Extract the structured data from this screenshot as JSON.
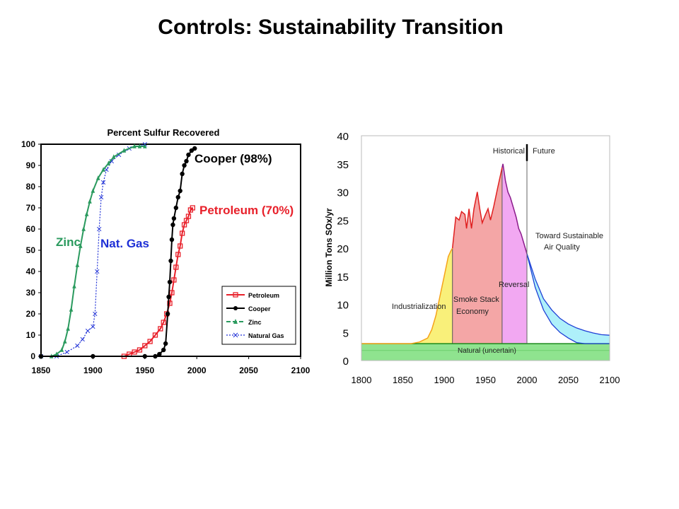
{
  "slide_title": "Controls: Sustainability Transition",
  "chart_data": [
    {
      "type": "line",
      "title": "Percent Sulfur Recovered",
      "xlabel": "",
      "ylabel": "",
      "xlim": [
        1850,
        2100
      ],
      "ylim": [
        0,
        100
      ],
      "x_ticks": [
        "1850",
        "1900",
        "1950",
        "2000",
        "2050",
        "2100"
      ],
      "y_ticks": [
        "0",
        "10",
        "20",
        "30",
        "40",
        "50",
        "60",
        "70",
        "80",
        "90",
        "100"
      ],
      "grid": false,
      "legend_position": "bottom-right",
      "series": [
        {
          "name": "Petroleum",
          "color": "#e8202a",
          "marker": "square",
          "points": [
            [
              1930,
              0
            ],
            [
              1935,
              1
            ],
            [
              1940,
              2
            ],
            [
              1945,
              3
            ],
            [
              1950,
              5
            ],
            [
              1955,
              7
            ],
            [
              1960,
              10
            ],
            [
              1965,
              13
            ],
            [
              1968,
              16
            ],
            [
              1971,
              20
            ],
            [
              1974,
              25
            ],
            [
              1976,
              30
            ],
            [
              1978,
              36
            ],
            [
              1980,
              42
            ],
            [
              1982,
              48
            ],
            [
              1984,
              52
            ],
            [
              1986,
              58
            ],
            [
              1988,
              62
            ],
            [
              1990,
              64
            ],
            [
              1992,
              66
            ],
            [
              1994,
              69
            ],
            [
              1996,
              70
            ]
          ]
        },
        {
          "name": "Cooper",
          "color": "#000000",
          "marker": "circle",
          "points": [
            [
              1850,
              0
            ],
            [
              1900,
              0
            ],
            [
              1950,
              0
            ],
            [
              1960,
              0
            ],
            [
              1964,
              1
            ],
            [
              1968,
              3
            ],
            [
              1970,
              6
            ],
            [
              1972,
              20
            ],
            [
              1973,
              28
            ],
            [
              1974,
              35
            ],
            [
              1975,
              45
            ],
            [
              1976,
              55
            ],
            [
              1977,
              62
            ],
            [
              1978,
              65
            ],
            [
              1980,
              70
            ],
            [
              1982,
              75
            ],
            [
              1984,
              78
            ],
            [
              1986,
              86
            ],
            [
              1988,
              90
            ],
            [
              1990,
              92
            ],
            [
              1992,
              95
            ],
            [
              1995,
              97
            ],
            [
              1998,
              98
            ]
          ]
        },
        {
          "name": "Zinc",
          "color": "#2a9a5e",
          "marker": "triangle",
          "points": [
            [
              1850,
              0
            ],
            [
              1860,
              0
            ],
            [
              1865,
              1
            ],
            [
              1870,
              3
            ],
            [
              1873,
              7
            ],
            [
              1876,
              13
            ],
            [
              1879,
              22
            ],
            [
              1882,
              33
            ],
            [
              1885,
              43
            ],
            [
              1888,
              52
            ],
            [
              1891,
              60
            ],
            [
              1894,
              67
            ],
            [
              1897,
              73
            ],
            [
              1900,
              78
            ],
            [
              1905,
              84
            ],
            [
              1910,
              88
            ],
            [
              1915,
              91
            ],
            [
              1920,
              94
            ],
            [
              1930,
              97
            ],
            [
              1940,
              99
            ],
            [
              1945,
              99
            ],
            [
              1950,
              99
            ]
          ]
        },
        {
          "name": "Natural Gas",
          "color": "#1e2fd6",
          "marker": "x",
          "points": [
            [
              1850,
              0
            ],
            [
              1865,
              0
            ],
            [
              1875,
              2
            ],
            [
              1885,
              5
            ],
            [
              1890,
              8
            ],
            [
              1895,
              12
            ],
            [
              1900,
              14
            ],
            [
              1902,
              20
            ],
            [
              1904,
              40
            ],
            [
              1906,
              60
            ],
            [
              1908,
              75
            ],
            [
              1910,
              82
            ],
            [
              1913,
              88
            ],
            [
              1918,
              92
            ],
            [
              1925,
              95
            ],
            [
              1935,
              98
            ],
            [
              1950,
              100
            ]
          ]
        }
      ],
      "annotations": [
        "Cooper (98%)",
        "Petroleum (70%)",
        "Zinc",
        "Nat. Gas"
      ]
    },
    {
      "type": "area",
      "title": "",
      "xlabel": "",
      "ylabel": "Million Tons SOx/yr",
      "xlim": [
        1800,
        2100
      ],
      "ylim": [
        0,
        40
      ],
      "x_ticks": [
        "1800",
        "1850",
        "1900",
        "1950",
        "2000",
        "2050",
        "2100"
      ],
      "y_ticks": [
        "0",
        "5",
        "10",
        "15",
        "20",
        "25",
        "30",
        "35",
        "40"
      ],
      "grid": false,
      "historical_divider_year": 2000,
      "emissions": [
        [
          1800,
          3
        ],
        [
          1840,
          3
        ],
        [
          1860,
          3
        ],
        [
          1870,
          3.3
        ],
        [
          1880,
          4
        ],
        [
          1885,
          5.5
        ],
        [
          1890,
          8
        ],
        [
          1895,
          11.5
        ],
        [
          1900,
          15
        ],
        [
          1905,
          18.5
        ],
        [
          1908,
          19.5
        ],
        [
          1910,
          20
        ],
        [
          1914,
          25.5
        ],
        [
          1918,
          25
        ],
        [
          1921,
          26.5
        ],
        [
          1925,
          26
        ],
        [
          1927,
          23.5
        ],
        [
          1930,
          27
        ],
        [
          1933,
          23.5
        ],
        [
          1936,
          27
        ],
        [
          1940,
          30
        ],
        [
          1943,
          27
        ],
        [
          1946,
          24.5
        ],
        [
          1950,
          26
        ],
        [
          1953,
          27
        ],
        [
          1956,
          25
        ],
        [
          1960,
          27.5
        ],
        [
          1965,
          31
        ],
        [
          1968,
          33
        ],
        [
          1971,
          35
        ],
        [
          1974,
          32
        ],
        [
          1977,
          30
        ],
        [
          1980,
          29
        ],
        [
          1984,
          27
        ],
        [
          1987,
          25.5
        ],
        [
          1990,
          23.5
        ],
        [
          1993,
          22.5
        ],
        [
          1996,
          21
        ],
        [
          2000,
          19
        ]
      ],
      "projection_upper": [
        [
          2000,
          19
        ],
        [
          2010,
          14.5
        ],
        [
          2020,
          11
        ],
        [
          2030,
          9
        ],
        [
          2040,
          7.5
        ],
        [
          2050,
          6.5
        ],
        [
          2060,
          5.8
        ],
        [
          2070,
          5.3
        ],
        [
          2080,
          4.9
        ],
        [
          2090,
          4.6
        ],
        [
          2100,
          4.5
        ]
      ],
      "projection_lower": [
        [
          2000,
          19
        ],
        [
          2010,
          13
        ],
        [
          2020,
          9
        ],
        [
          2030,
          6.5
        ],
        [
          2040,
          5
        ],
        [
          2050,
          4
        ],
        [
          2060,
          3.2
        ],
        [
          2070,
          3
        ],
        [
          2100,
          3
        ]
      ],
      "natural_band": [
        0,
        3
      ],
      "phases": [
        {
          "label": "Industrialization",
          "start": 1860,
          "end": 1910,
          "color": "#f9f07a"
        },
        {
          "label": "Smoke Stack Economy",
          "start": 1910,
          "end": 1970,
          "color": "#f4a6a6"
        },
        {
          "label": "Reversal",
          "start": 1970,
          "end": 2000,
          "color": "#f2a8f2"
        },
        {
          "label": "Toward Sustainable Air Quality",
          "start": 2000,
          "end": 2100,
          "color": "#aef0fa"
        }
      ],
      "annotations": {
        "historical": "Historical",
        "future": "Future",
        "industrialization": "Industrialization",
        "smoke_stack_1": "Smoke Stack",
        "smoke_stack_2": "Economy",
        "reversal": "Reversal",
        "toward_1": "Toward Sustainable",
        "toward_2": "Air Quality",
        "natural": "Natural (uncertain)"
      }
    }
  ]
}
